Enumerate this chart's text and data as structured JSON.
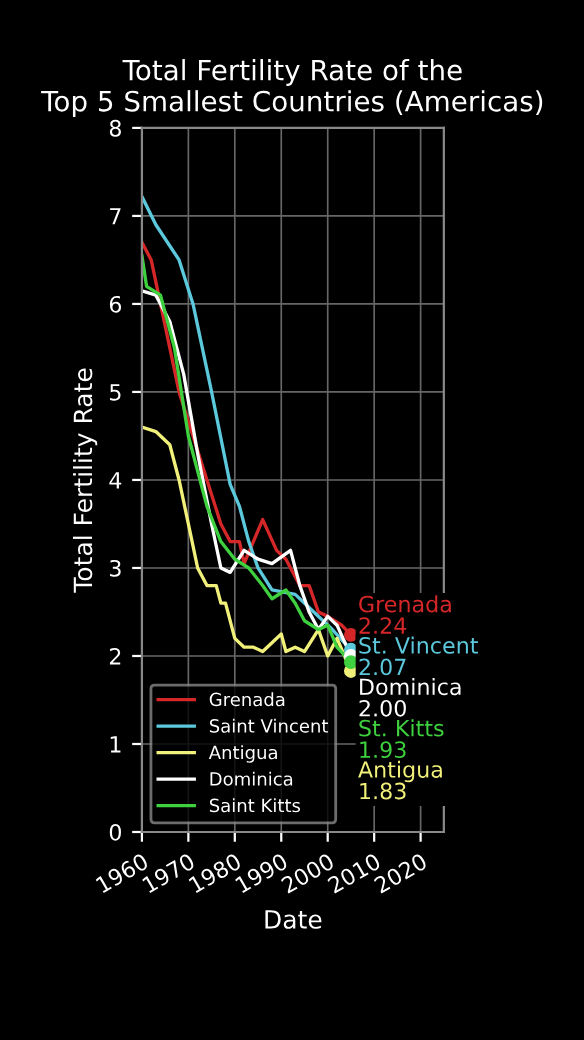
{
  "chart_data": {
    "type": "line",
    "title": "Total Fertility Rate of the\nTop 5 Smallest Countries (Americas)",
    "xlabel": "Date",
    "ylabel": "Total Fertility Rate",
    "xlim": [
      1960,
      2025
    ],
    "xticks": [
      1960,
      1970,
      1980,
      1990,
      2000,
      2010,
      2020
    ],
    "ylim": [
      0,
      8
    ],
    "yticks": [
      0,
      1,
      2,
      3,
      4,
      5,
      6,
      7,
      8
    ],
    "grid": true,
    "legend": "bottom left",
    "series": [
      {
        "name": "Grenada",
        "color": "#d62728",
        "x": [
          1960,
          1962,
          1966,
          1968,
          1971,
          1974,
          1977,
          1979,
          1981,
          1982,
          1984,
          1986,
          1989,
          1991,
          1994,
          1996,
          1998,
          2000,
          2003,
          2005
        ],
        "values": [
          6.7,
          6.5,
          5.5,
          5.0,
          4.5,
          4.0,
          3.5,
          3.3,
          3.3,
          3.05,
          3.3,
          3.55,
          3.2,
          3.1,
          2.8,
          2.8,
          2.5,
          2.45,
          2.35,
          2.24
        ]
      },
      {
        "name": "Saint Vincent",
        "color": "#5bc8dc",
        "x": [
          1960,
          1963,
          1968,
          1971,
          1975,
          1979,
          1981,
          1983,
          1985,
          1988,
          1993,
          1997,
          2001,
          2005
        ],
        "values": [
          7.22,
          6.9,
          6.5,
          6.0,
          5.0,
          3.95,
          3.7,
          3.3,
          3.0,
          2.75,
          2.7,
          2.5,
          2.3,
          2.07
        ]
      },
      {
        "name": "Antigua",
        "color": "#f0f07a",
        "x": [
          1960,
          1963,
          1966,
          1968,
          1970,
          1972,
          1974,
          1976,
          1977,
          1978,
          1980,
          1982,
          1984,
          1986,
          1990,
          1991,
          1993,
          1995,
          1998,
          2000,
          2002,
          2005
        ],
        "values": [
          4.6,
          4.55,
          4.4,
          4.0,
          3.5,
          3.0,
          2.8,
          2.8,
          2.6,
          2.6,
          2.2,
          2.1,
          2.1,
          2.05,
          2.25,
          2.05,
          2.1,
          2.05,
          2.3,
          2.0,
          2.2,
          1.83
        ]
      },
      {
        "name": "Dominica",
        "color": "#ffffff",
        "x": [
          1960,
          1963,
          1966,
          1969,
          1972,
          1975,
          1977,
          1979,
          1982,
          1985,
          1988,
          1992,
          1994,
          1996,
          1998,
          2000,
          2002,
          2005
        ],
        "values": [
          6.15,
          6.1,
          5.8,
          5.2,
          4.3,
          3.5,
          3.0,
          2.95,
          3.2,
          3.1,
          3.05,
          3.2,
          2.8,
          2.5,
          2.3,
          2.45,
          2.35,
          2.0
        ]
      },
      {
        "name": "Saint Kitts",
        "color": "#3ed03e",
        "x": [
          1960,
          1961,
          1964,
          1967,
          1970,
          1974,
          1977,
          1980,
          1983,
          1986,
          1988,
          1991,
          1993,
          1995,
          1998,
          2000,
          2002,
          2005
        ],
        "values": [
          6.55,
          6.2,
          6.1,
          5.5,
          4.5,
          3.7,
          3.3,
          3.1,
          3.0,
          2.8,
          2.65,
          2.75,
          2.6,
          2.4,
          2.3,
          2.35,
          2.1,
          1.93
        ]
      }
    ],
    "annotations": [
      "Grenada\n2.24",
      "St. Vincent\n2.07",
      "Dominica\n2.00",
      "St. Kitts\n1.93",
      "Antigua\n1.83"
    ]
  }
}
